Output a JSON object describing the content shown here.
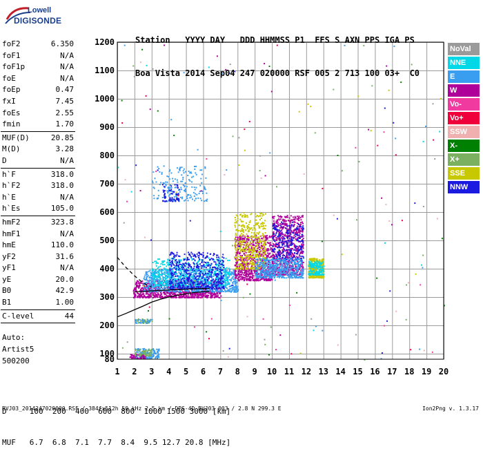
{
  "logo": {
    "line1": "Lowell",
    "line2": "DIGISONDE"
  },
  "header": {
    "line1": [
      "Station",
      "YYYY",
      "DAY",
      "DDD",
      "HHMMSS",
      "P1",
      "FFS",
      "S",
      "AXN",
      "PPS",
      "IGA",
      "PS"
    ],
    "line2": [
      "Boa Vista",
      "2014",
      "Sep04",
      "247",
      "020000",
      "RSF",
      "005",
      "2",
      "713",
      "100",
      "03+",
      "C0"
    ]
  },
  "params": [
    {
      "k": "foF2",
      "v": "6.350"
    },
    {
      "k": "foF1",
      "v": "N/A"
    },
    {
      "k": "foF1p",
      "v": "N/A"
    },
    {
      "k": "foE",
      "v": "N/A"
    },
    {
      "k": "foEp",
      "v": "0.47"
    },
    {
      "k": "fxI",
      "v": "7.45"
    },
    {
      "k": "foEs",
      "v": "2.55"
    },
    {
      "k": "fmin",
      "v": "1.70"
    },
    {
      "sep": true
    },
    {
      "k": "MUF(D)",
      "v": "20.85"
    },
    {
      "k": "M(D)",
      "v": "3.28"
    },
    {
      "k": "D",
      "v": "N/A"
    },
    {
      "sep": true
    },
    {
      "k": "h`F",
      "v": "318.0"
    },
    {
      "k": "h`F2",
      "v": "318.0"
    },
    {
      "k": "h`E",
      "v": "N/A"
    },
    {
      "k": "h`Es",
      "v": "105.0"
    },
    {
      "sep": true
    },
    {
      "k": "hmF2",
      "v": "323.8"
    },
    {
      "k": "hmF1",
      "v": "N/A"
    },
    {
      "k": "hmE",
      "v": "110.0"
    },
    {
      "k": "yF2",
      "v": "31.6"
    },
    {
      "k": "yF1",
      "v": "N/A"
    },
    {
      "k": "yE",
      "v": "20.0"
    },
    {
      "k": "B0",
      "v": "42.9"
    },
    {
      "k": "B1",
      "v": "1.00"
    },
    {
      "sep": true
    },
    {
      "k": "C-level",
      "v": "44"
    },
    {
      "sep": true
    }
  ],
  "auto": [
    "Auto:",
    "Artist5",
    "500200"
  ],
  "legend": [
    {
      "label": "NoVal",
      "color": "#9a9a9a"
    },
    {
      "label": "NNE",
      "color": "#00d8e8"
    },
    {
      "label": "E",
      "color": "#3a9ef0"
    },
    {
      "label": "W",
      "color": "#b0009a"
    },
    {
      "label": "Vo-",
      "color": "#f03aa0"
    },
    {
      "label": "Vo+",
      "color": "#f0003a"
    },
    {
      "label": "SSW",
      "color": "#f0b0b0"
    },
    {
      "label": "X-",
      "color": "#008000"
    },
    {
      "label": "X+",
      "color": "#7ab060"
    },
    {
      "label": "SSE",
      "color": "#c8c800"
    },
    {
      "label": "NNW",
      "color": "#1a1ae0"
    }
  ],
  "dmuf": {
    "d_label": "D",
    "d_values": [
      "100",
      "200",
      "400",
      "600",
      "800",
      "1000",
      "1500",
      "3000"
    ],
    "d_unit": "[km]",
    "muf_label": "MUF",
    "muf_values": [
      "6.7",
      "6.8",
      "7.1",
      "7.7",
      "8.4",
      "9.5",
      "12.7",
      "20.8"
    ],
    "muf_unit": "[MHz]"
  },
  "footer": "BVJ03_2014247020000.RSF / 384fx512h 50 kHz 2.5 km / DPS-4D BVJ03 003 / 2.8 N 299.3 E",
  "version": "Ion2Png v. 1.3.17",
  "chart_data": {
    "type": "scatter",
    "xlim": [
      1,
      20
    ],
    "ylim": [
      80,
      1200
    ],
    "x_ticks": [
      "1",
      "2",
      "3",
      "4",
      "5",
      "6",
      "7",
      "8",
      "9",
      "10",
      "11",
      "12",
      "13",
      "14",
      "15",
      "16",
      "17",
      "18",
      "19",
      "20"
    ],
    "y_ticks": [
      "80",
      "100",
      "200",
      "300",
      "400",
      "500",
      "600",
      "700",
      "800",
      "900",
      "1000",
      "1100",
      "1200"
    ],
    "grid": true,
    "legend_position": "right",
    "clusters": [
      {
        "color": "#b0009a",
        "x": [
          1.9,
          7.0
        ],
        "y": [
          300,
          360
        ],
        "n": 900
      },
      {
        "color": "#3a9ef0",
        "x": [
          2.5,
          8.0
        ],
        "y": [
          320,
          400
        ],
        "n": 900
      },
      {
        "color": "#00d8e8",
        "x": [
          3.0,
          7.5
        ],
        "y": [
          340,
          440
        ],
        "n": 500
      },
      {
        "color": "#1a1ae0",
        "x": [
          4.0,
          7.2
        ],
        "y": [
          330,
          460
        ],
        "n": 500
      },
      {
        "color": "#b0009a",
        "x": [
          7.8,
          10.0
        ],
        "y": [
          360,
          520
        ],
        "n": 700
      },
      {
        "color": "#c8c800",
        "x": [
          7.8,
          9.6
        ],
        "y": [
          400,
          600
        ],
        "n": 450
      },
      {
        "color": "#b0009a",
        "x": [
          10.0,
          11.8
        ],
        "y": [
          380,
          590
        ],
        "n": 700
      },
      {
        "color": "#1a1ae0",
        "x": [
          10.0,
          11.8
        ],
        "y": [
          430,
          570
        ],
        "n": 250
      },
      {
        "color": "#3a9ef0",
        "x": [
          9.0,
          11.8
        ],
        "y": [
          370,
          440
        ],
        "n": 500
      },
      {
        "color": "#c8c800",
        "x": [
          12.1,
          13.0
        ],
        "y": [
          370,
          440
        ],
        "n": 300
      },
      {
        "color": "#00d8e8",
        "x": [
          12.1,
          13.0
        ],
        "y": [
          380,
          430
        ],
        "n": 150
      },
      {
        "color": "#3a9ef0",
        "x": [
          3.0,
          6.2
        ],
        "y": [
          640,
          765
        ],
        "n": 180
      },
      {
        "color": "#1a1ae0",
        "x": [
          3.6,
          4.6
        ],
        "y": [
          640,
          700
        ],
        "n": 60
      },
      {
        "color": "#3a9ef0",
        "x": [
          2.0,
          3.4
        ],
        "y": [
          85,
          120
        ],
        "n": 150
      },
      {
        "color": "#b0009a",
        "x": [
          1.7,
          2.6
        ],
        "y": [
          85,
          100
        ],
        "n": 60
      },
      {
        "color": "#7ab060",
        "x": [
          2.0,
          3.0
        ],
        "y": [
          95,
          120
        ],
        "n": 60
      },
      {
        "color": "#7ab060",
        "x": [
          2.0,
          3.0
        ],
        "y": [
          210,
          225
        ],
        "n": 50
      },
      {
        "color": "#3a9ef0",
        "x": [
          2.0,
          3.0
        ],
        "y": [
          210,
          225
        ],
        "n": 25
      }
    ],
    "scatter_noise": {
      "x": [
        1,
        20
      ],
      "y": [
        80,
        1200
      ],
      "n": 180
    },
    "curves": [
      {
        "style": "solid",
        "x": [
          1,
          1.5,
          2,
          2.5,
          3,
          3.5,
          4,
          4.5,
          5,
          5.5,
          6,
          6.35
        ],
        "y": [
          230,
          242,
          255,
          268,
          282,
          292,
          300,
          306,
          312,
          316,
          319,
          320
        ]
      },
      {
        "style": "dashed",
        "x": [
          1,
          1.5,
          2,
          2.5,
          3
        ],
        "y": [
          440,
          405,
          375,
          350,
          335
        ]
      },
      {
        "style": "solid",
        "x": [
          2,
          3,
          4,
          5,
          6,
          6.35
        ],
        "y": [
          318,
          322,
          325,
          328,
          330,
          330
        ]
      }
    ]
  }
}
